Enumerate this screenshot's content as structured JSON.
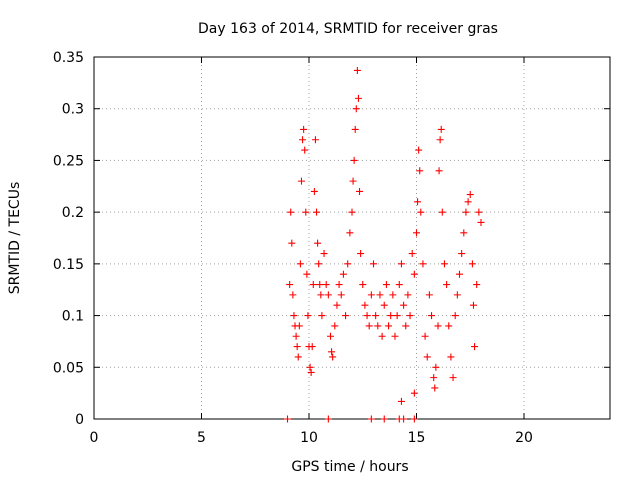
{
  "chart_data": {
    "type": "scatter",
    "title": "Day 163 of 2014, SRMTID for receiver gras",
    "xlabel": "GPS time / hours",
    "ylabel": "SRMTID / TECUs",
    "xlim": [
      0,
      24
    ],
    "ylim": [
      0,
      0.35
    ],
    "xticks": [
      0,
      5,
      10,
      15,
      20
    ],
    "yticks": [
      0,
      0.05,
      0.1,
      0.15,
      0.2,
      0.25,
      0.3,
      0.35
    ],
    "xtick_labels": [
      "0",
      "5",
      "10",
      "15",
      "20"
    ],
    "ytick_labels": [
      "0",
      "0.05",
      "0.1",
      "0.15",
      "0.2",
      "0.25",
      "0.3",
      "0.35"
    ],
    "grid": true,
    "marker": "+",
    "color": "#ff0000",
    "series": [
      {
        "name": "SRMTID",
        "points": [
          [
            9.0,
            0.0
          ],
          [
            10.9,
            0.0
          ],
          [
            12.9,
            0.0
          ],
          [
            13.5,
            0.0
          ],
          [
            14.2,
            0.0
          ],
          [
            14.4,
            0.0
          ],
          [
            14.9,
            0.0
          ],
          [
            14.3,
            0.017
          ],
          [
            14.9,
            0.025
          ],
          [
            9.1,
            0.13
          ],
          [
            9.15,
            0.2
          ],
          [
            9.2,
            0.17
          ],
          [
            9.25,
            0.12
          ],
          [
            9.3,
            0.1
          ],
          [
            9.35,
            0.09
          ],
          [
            9.4,
            0.08
          ],
          [
            9.45,
            0.07
          ],
          [
            9.5,
            0.06
          ],
          [
            9.55,
            0.09
          ],
          [
            9.6,
            0.15
          ],
          [
            9.65,
            0.23
          ],
          [
            9.7,
            0.27
          ],
          [
            9.75,
            0.28
          ],
          [
            9.8,
            0.26
          ],
          [
            9.85,
            0.2
          ],
          [
            9.9,
            0.14
          ],
          [
            9.95,
            0.1
          ],
          [
            10.0,
            0.07
          ],
          [
            10.05,
            0.05
          ],
          [
            10.1,
            0.045
          ],
          [
            10.15,
            0.07
          ],
          [
            10.2,
            0.13
          ],
          [
            10.25,
            0.22
          ],
          [
            10.3,
            0.27
          ],
          [
            10.35,
            0.2
          ],
          [
            10.4,
            0.17
          ],
          [
            10.45,
            0.15
          ],
          [
            10.5,
            0.13
          ],
          [
            10.55,
            0.12
          ],
          [
            10.6,
            0.1
          ],
          [
            10.7,
            0.16
          ],
          [
            10.8,
            0.13
          ],
          [
            10.9,
            0.12
          ],
          [
            11.0,
            0.08
          ],
          [
            11.05,
            0.065
          ],
          [
            11.1,
            0.06
          ],
          [
            11.2,
            0.09
          ],
          [
            11.3,
            0.11
          ],
          [
            11.4,
            0.13
          ],
          [
            11.5,
            0.12
          ],
          [
            11.6,
            0.14
          ],
          [
            11.7,
            0.1
          ],
          [
            11.8,
            0.15
          ],
          [
            11.9,
            0.18
          ],
          [
            12.0,
            0.2
          ],
          [
            12.05,
            0.23
          ],
          [
            12.1,
            0.25
          ],
          [
            12.15,
            0.28
          ],
          [
            12.2,
            0.3
          ],
          [
            12.25,
            0.337
          ],
          [
            12.3,
            0.31
          ],
          [
            12.35,
            0.22
          ],
          [
            12.4,
            0.16
          ],
          [
            12.5,
            0.13
          ],
          [
            12.6,
            0.11
          ],
          [
            12.7,
            0.1
          ],
          [
            12.8,
            0.09
          ],
          [
            12.9,
            0.12
          ],
          [
            13.0,
            0.15
          ],
          [
            13.1,
            0.1
          ],
          [
            13.2,
            0.09
          ],
          [
            13.3,
            0.12
          ],
          [
            13.4,
            0.08
          ],
          [
            13.5,
            0.11
          ],
          [
            13.6,
            0.13
          ],
          [
            13.7,
            0.09
          ],
          [
            13.8,
            0.1
          ],
          [
            13.9,
            0.12
          ],
          [
            14.0,
            0.08
          ],
          [
            14.1,
            0.1
          ],
          [
            14.2,
            0.13
          ],
          [
            14.3,
            0.15
          ],
          [
            14.4,
            0.11
          ],
          [
            14.5,
            0.09
          ],
          [
            14.6,
            0.12
          ],
          [
            14.7,
            0.1
          ],
          [
            14.8,
            0.16
          ],
          [
            14.9,
            0.14
          ],
          [
            15.0,
            0.18
          ],
          [
            15.05,
            0.21
          ],
          [
            15.1,
            0.26
          ],
          [
            15.15,
            0.24
          ],
          [
            15.2,
            0.2
          ],
          [
            15.3,
            0.15
          ],
          [
            15.4,
            0.08
          ],
          [
            15.5,
            0.06
          ],
          [
            15.6,
            0.12
          ],
          [
            15.7,
            0.1
          ],
          [
            15.8,
            0.04
          ],
          [
            15.85,
            0.03
          ],
          [
            15.9,
            0.05
          ],
          [
            16.0,
            0.09
          ],
          [
            16.05,
            0.24
          ],
          [
            16.1,
            0.27
          ],
          [
            16.15,
            0.28
          ],
          [
            16.2,
            0.2
          ],
          [
            16.3,
            0.15
          ],
          [
            16.4,
            0.13
          ],
          [
            16.5,
            0.09
          ],
          [
            16.6,
            0.06
          ],
          [
            16.7,
            0.04
          ],
          [
            16.8,
            0.1
          ],
          [
            16.9,
            0.12
          ],
          [
            17.0,
            0.14
          ],
          [
            17.1,
            0.16
          ],
          [
            17.2,
            0.18
          ],
          [
            17.3,
            0.2
          ],
          [
            17.4,
            0.21
          ],
          [
            17.5,
            0.217
          ],
          [
            17.6,
            0.15
          ],
          [
            17.65,
            0.11
          ],
          [
            17.7,
            0.07
          ],
          [
            17.8,
            0.13
          ],
          [
            17.9,
            0.2
          ],
          [
            18.0,
            0.19
          ]
        ]
      }
    ]
  }
}
